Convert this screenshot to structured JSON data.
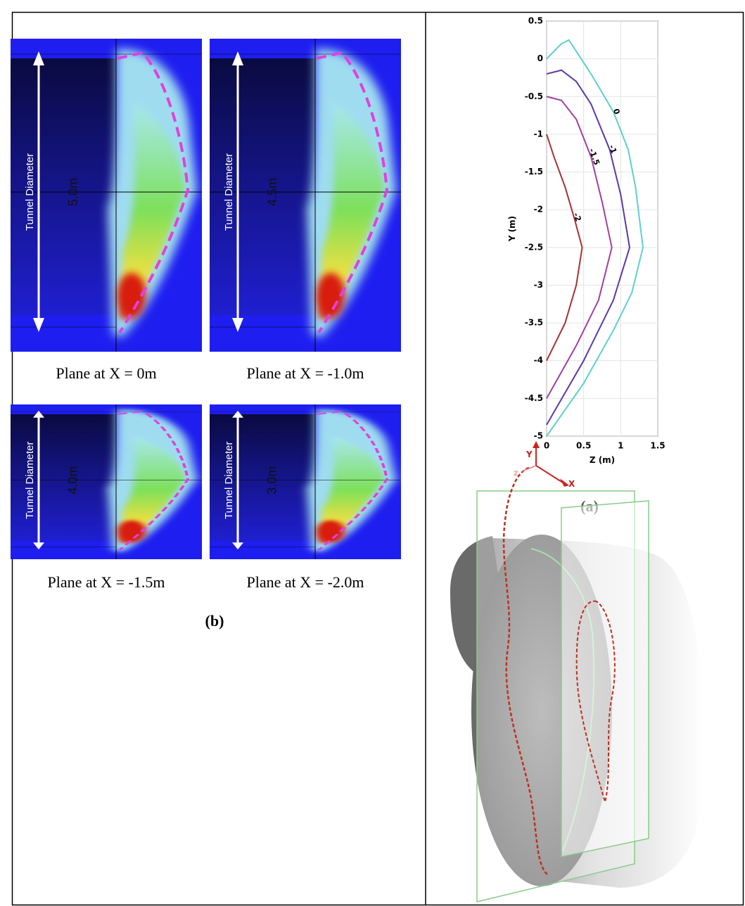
{
  "panels": [
    {
      "caption": "Plane at X = 0m",
      "diameter": "5.0m",
      "arrow_label": "Tunnel Diameter"
    },
    {
      "caption": "Plane at X = -1.0m",
      "diameter": "4.5m",
      "arrow_label": "Tunnel Diameter"
    },
    {
      "caption": "Plane at X = -1.5m",
      "diameter": "4.0m",
      "arrow_label": "Tunnel Diameter"
    },
    {
      "caption": "Plane at X = -2.0m",
      "diameter": "3.0m",
      "arrow_label": "Tunnel Diameter"
    }
  ],
  "label_b": "(b)",
  "label_a": "(a)",
  "chart_data": {
    "type": "line",
    "xlabel": "Z (m)",
    "ylabel": "Y (m)",
    "xlim": [
      0,
      1.5
    ],
    "xticks": [
      0,
      0.5,
      1,
      1.5
    ],
    "ylim": [
      -5,
      0.5
    ],
    "yticks": [
      -5,
      -4.5,
      -4,
      -3.5,
      -3,
      -2.5,
      -2,
      -1.5,
      -1,
      -0.5,
      0,
      0.5
    ],
    "grid": true,
    "series": [
      {
        "name": "0",
        "color": "#5fcfcf",
        "x": [
          0,
          0.2,
          0.3,
          0.4,
          0.6,
          0.9,
          1.1,
          1.2,
          1.3,
          1.15,
          0.9,
          0.5,
          0
        ],
        "values": [
          0,
          0.2,
          0.25,
          0.1,
          -0.2,
          -0.7,
          -1.2,
          -1.7,
          -2.5,
          -3.1,
          -3.6,
          -4.3,
          -5
        ]
      },
      {
        "name": "-1",
        "color": "#5a3aa8",
        "x": [
          0,
          0.2,
          0.4,
          0.6,
          0.85,
          1.0,
          1.12,
          0.9,
          0.5,
          0
        ],
        "values": [
          -0.2,
          -0.15,
          -0.3,
          -0.6,
          -1.2,
          -1.8,
          -2.5,
          -3.2,
          -4,
          -4.85
        ]
      },
      {
        "name": "-1.5",
        "color": "#a040a0",
        "x": [
          0,
          0.2,
          0.4,
          0.6,
          0.75,
          0.88,
          0.7,
          0.4,
          0
        ],
        "values": [
          -0.5,
          -0.55,
          -0.8,
          -1.3,
          -1.9,
          -2.5,
          -3.2,
          -3.8,
          -4.5
        ]
      },
      {
        "name": "-2",
        "color": "#a83232",
        "x": [
          0,
          0.1,
          0.25,
          0.37,
          0.48,
          0.4,
          0.25,
          0
        ],
        "values": [
          -1,
          -1.3,
          -1.7,
          -2.1,
          -2.5,
          -3,
          -3.5,
          -4
        ]
      }
    ]
  },
  "figure_3d": {
    "axis_labels": [
      "Y",
      "X",
      "Z"
    ]
  }
}
